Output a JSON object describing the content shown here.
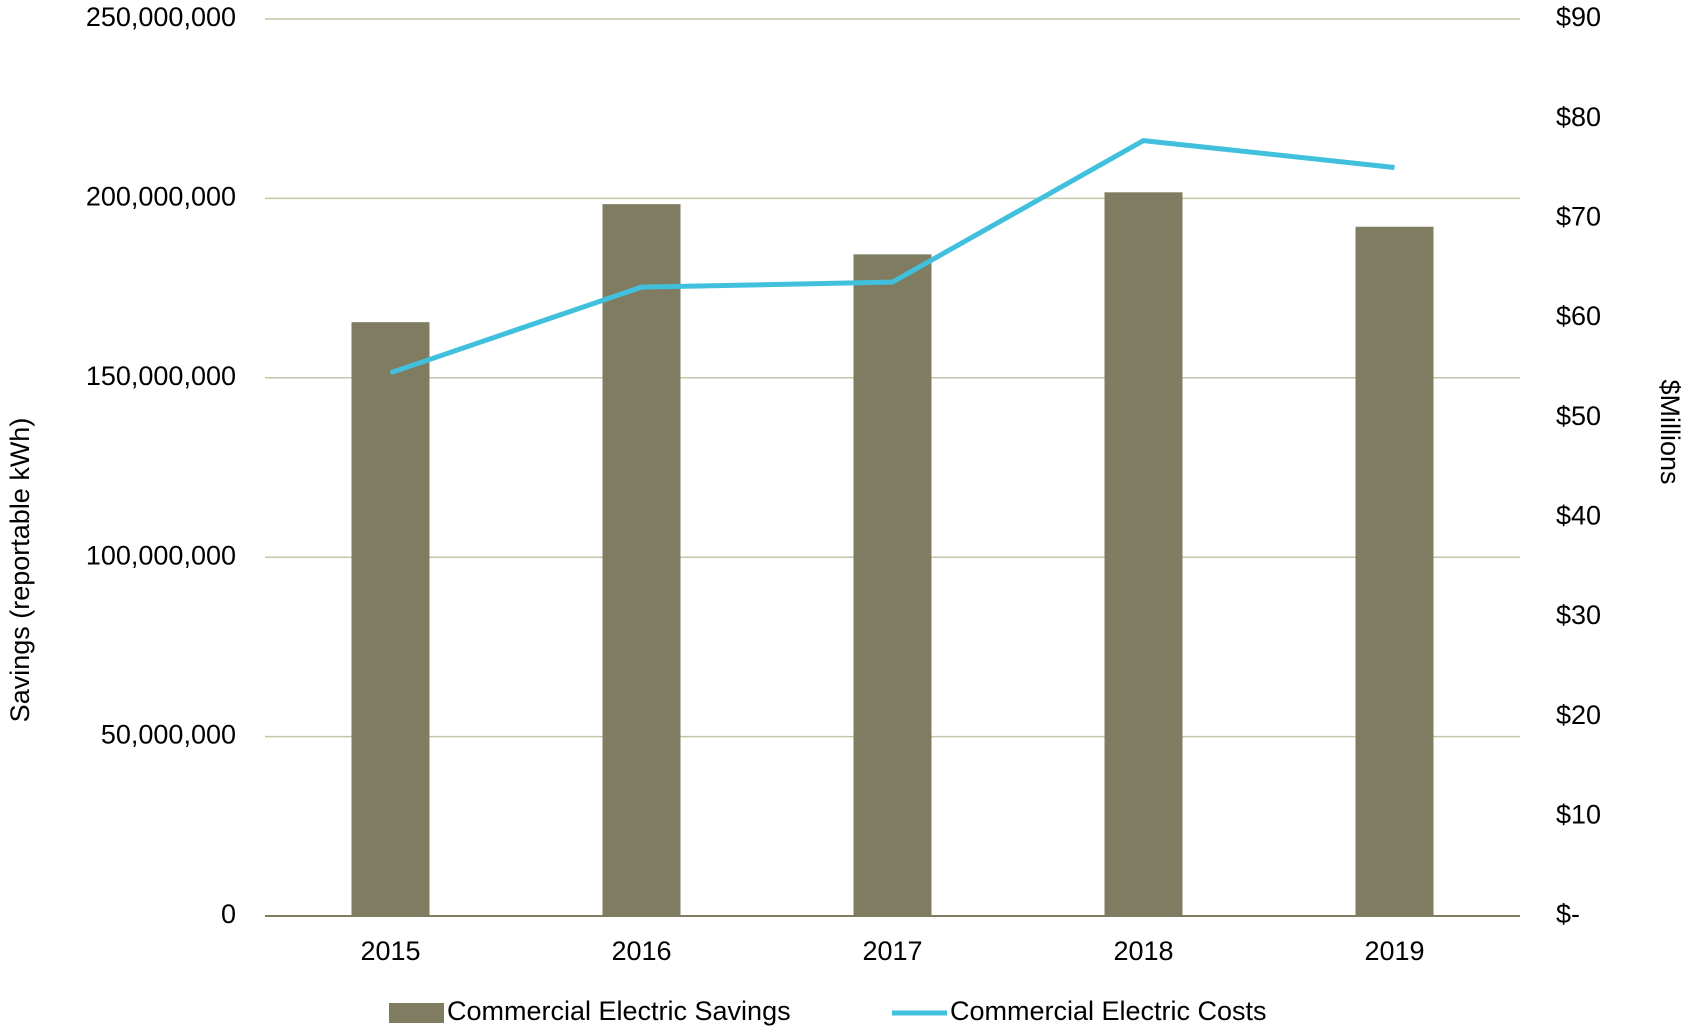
{
  "chart_data": {
    "type": "bar",
    "categories": [
      "2015",
      "2016",
      "2017",
      "2018",
      "2019"
    ],
    "series": [
      {
        "name": "Commercial Electric Savings",
        "type": "bar",
        "color": "#7f7c62",
        "values": [
          165500000,
          198400000,
          184400000,
          201700000,
          192100000
        ]
      },
      {
        "name": "Commercial Electric Costs",
        "type": "line",
        "axis": "y2",
        "color": "#40c0dc",
        "values": [
          54.5,
          63.1,
          63.6,
          77.8,
          75.1
        ]
      }
    ],
    "ylabel": "Savings (reportable kWh)",
    "y2label": "$Millions",
    "ylim": [
      0,
      250000000
    ],
    "yticks": [
      0,
      {
        "value": 50000000,
        "label": "50,000,000"
      },
      {
        "value": 100000000,
        "label": "100,000,000"
      },
      {
        "value": 150000000,
        "label": "150,000,000"
      },
      {
        "value": 200000000,
        "label": "200,000,000"
      },
      {
        "value": 250000000,
        "label": "250,000,000"
      }
    ],
    "y2lim": [
      0,
      90
    ],
    "y2ticks": [
      {
        "value": 0,
        "label": "$-"
      },
      {
        "value": 10,
        "label": "$10"
      },
      {
        "value": 20,
        "label": "$20"
      },
      {
        "value": 30,
        "label": "$30"
      },
      {
        "value": 40,
        "label": "$40"
      },
      {
        "value": 50,
        "label": "$50"
      },
      {
        "value": 60,
        "label": "$60"
      },
      {
        "value": 70,
        "label": "$70"
      },
      {
        "value": 80,
        "label": "$80"
      },
      {
        "value": 90,
        "label": "$90"
      }
    ],
    "grid": true,
    "legend": "bottom"
  }
}
